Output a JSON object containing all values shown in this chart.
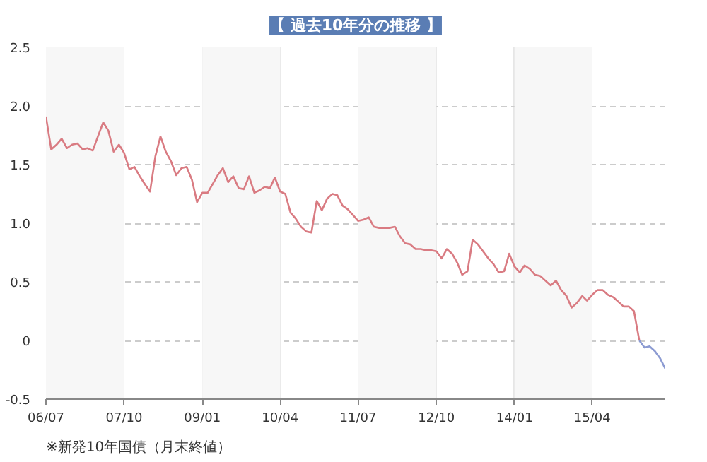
{
  "chart_data": {
    "type": "line",
    "title": "【 過去10年分の推移 】",
    "annotations": [
      "※新発10年国債（月末終値）"
    ],
    "series": [
      {
        "color": "#d97b82",
        "x": [
          "2006-07",
          "2006-08",
          "2006-09",
          "2006-10",
          "2006-11",
          "2006-12",
          "2007-01",
          "2007-02",
          "2007-03",
          "2007-04",
          "2007-05",
          "2007-06",
          "2007-07",
          "2007-08",
          "2007-09",
          "2007-10",
          "2007-11",
          "2007-12",
          "2008-01",
          "2008-02",
          "2008-03",
          "2008-04",
          "2008-05",
          "2008-06",
          "2008-07",
          "2008-08",
          "2008-09",
          "2008-10",
          "2008-11",
          "2008-12",
          "2009-01",
          "2009-02",
          "2009-03",
          "2009-04",
          "2009-05",
          "2009-06",
          "2009-07",
          "2009-08",
          "2009-09",
          "2009-10",
          "2009-11",
          "2009-12",
          "2010-01",
          "2010-02",
          "2010-03",
          "2010-04",
          "2010-05",
          "2010-06",
          "2010-07",
          "2010-08",
          "2010-09",
          "2010-10",
          "2010-11",
          "2010-12",
          "2011-01",
          "2011-02",
          "2011-03",
          "2011-04",
          "2011-05",
          "2011-06",
          "2011-07",
          "2011-08",
          "2011-09",
          "2011-10",
          "2011-11",
          "2011-12",
          "2012-01",
          "2012-02",
          "2012-03",
          "2012-04",
          "2012-05",
          "2012-06",
          "2012-07",
          "2012-08",
          "2012-09",
          "2012-10",
          "2012-11",
          "2012-12",
          "2013-01",
          "2013-02",
          "2013-03",
          "2013-04",
          "2013-05",
          "2013-06",
          "2013-07",
          "2013-08",
          "2013-09",
          "2013-10",
          "2013-11",
          "2013-12",
          "2014-01",
          "2014-02",
          "2014-03",
          "2014-04",
          "2014-05",
          "2014-06",
          "2014-07",
          "2014-08",
          "2014-09",
          "2014-10",
          "2014-11",
          "2014-12",
          "2015-01",
          "2015-02",
          "2015-03",
          "2015-04",
          "2015-05",
          "2015-06",
          "2015-07",
          "2015-08",
          "2015-09",
          "2015-10",
          "2015-11",
          "2015-12",
          "2016-01"
        ],
        "values": [
          1.91,
          1.63,
          1.67,
          1.72,
          1.64,
          1.67,
          1.68,
          1.63,
          1.64,
          1.62,
          1.74,
          1.86,
          1.79,
          1.61,
          1.67,
          1.6,
          1.46,
          1.48,
          1.4,
          1.33,
          1.27,
          1.57,
          1.74,
          1.61,
          1.53,
          1.41,
          1.47,
          1.48,
          1.37,
          1.18,
          1.26,
          1.26,
          1.33,
          1.41,
          1.47,
          1.35,
          1.4,
          1.3,
          1.29,
          1.4,
          1.26,
          1.28,
          1.31,
          1.3,
          1.39,
          1.27,
          1.25,
          1.09,
          1.04,
          0.97,
          0.93,
          0.92,
          1.19,
          1.11,
          1.21,
          1.25,
          1.24,
          1.15,
          1.12,
          1.07,
          1.02,
          1.03,
          1.05,
          0.97,
          0.96,
          0.96,
          0.96,
          0.97,
          0.89,
          0.83,
          0.82,
          0.78,
          0.78,
          0.77,
          0.77,
          0.76,
          0.7,
          0.78,
          0.74,
          0.66,
          0.56,
          0.59,
          0.86,
          0.82,
          0.76,
          0.7,
          0.65,
          0.58,
          0.59,
          0.74,
          0.63,
          0.58,
          0.64,
          0.61,
          0.56,
          0.55,
          0.51,
          0.47,
          0.51,
          0.43,
          0.38,
          0.28,
          0.32,
          0.38,
          0.34,
          0.39,
          0.43,
          0.43,
          0.39,
          0.37,
          0.33,
          0.29,
          0.29,
          0.25,
          0.0
        ]
      },
      {
        "color": "#8c9bd2",
        "x": [
          "2016-01",
          "2016-02",
          "2016-03",
          "2016-04",
          "2016-05",
          "2016-06"
        ],
        "values": [
          0.0,
          -0.06,
          -0.05,
          -0.09,
          -0.15,
          -0.24
        ]
      }
    ],
    "xlim": [
      "2006-07",
      "2016-06"
    ],
    "xticks": [
      {
        "value": "2006-07",
        "label": "06/07"
      },
      {
        "value": "2007-10",
        "label": "07/10"
      },
      {
        "value": "2009-01",
        "label": "09/01"
      },
      {
        "value": "2010-04",
        "label": "10/04"
      },
      {
        "value": "2011-07",
        "label": "11/07"
      },
      {
        "value": "2012-10",
        "label": "12/10"
      },
      {
        "value": "2014-01",
        "label": "14/01"
      },
      {
        "value": "2015-04",
        "label": "15/04"
      }
    ],
    "ylim": [
      -0.5,
      2.5
    ],
    "yticks": [
      2.5,
      {
        "value": 2,
        "label": "2.0"
      },
      1.5,
      {
        "value": 1,
        "label": "1.0"
      },
      0.5,
      0,
      -0.5
    ],
    "bands": [
      {
        "axis": "x",
        "from": "2006-07",
        "to": "2007-10",
        "color": "#f7f7f7"
      },
      {
        "axis": "x",
        "from": "2009-01",
        "to": "2010-04",
        "color": "#f7f7f7"
      },
      {
        "axis": "x",
        "from": "2011-07",
        "to": "2012-10",
        "color": "#f7f7f7"
      },
      {
        "axis": "x",
        "from": "2014-01",
        "to": "2015-04",
        "color": "#f7f7f7"
      }
    ],
    "grid": true,
    "marker": "none",
    "line_style": "solid"
  }
}
